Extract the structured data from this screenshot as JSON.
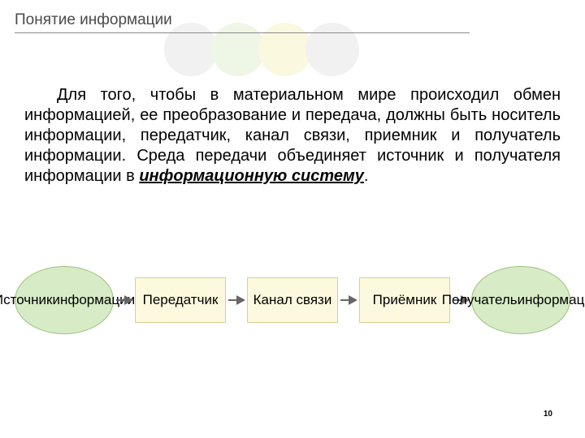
{
  "title": "Понятие информации",
  "decorative_circles": {
    "colors": [
      "#f1f1f1",
      "#eef6e6",
      "#fbf8e0",
      "#f1f1f1"
    ],
    "diameter": 66
  },
  "paragraph": {
    "text_before": "Для того, чтобы в материальном мире происходил обмен информацией, ее преобразование и передача, должны быть носитель информации, передатчик, канал связи, приемник и получатель информации. Среда передачи объединяет источник и получателя информации в ",
    "emphasis": "информационную систему",
    "text_after": "."
  },
  "diagram": {
    "type": "flowchart",
    "arrow_color": "#666666",
    "nodes": [
      {
        "label": "Источник\nинформации",
        "shape": "ellipse",
        "fill": "#d6ebc6",
        "border": "#9cc47a"
      },
      {
        "label": "Передатчик",
        "shape": "rect",
        "fill": "#fdf9df",
        "border": "#d9cf8f"
      },
      {
        "label": "Канал связи",
        "shape": "rect",
        "fill": "#fdf9df",
        "border": "#d9cf8f"
      },
      {
        "label": "Приёмник",
        "shape": "rect",
        "fill": "#fdf9df",
        "border": "#d9cf8f"
      },
      {
        "label": "Получатель\nинформации",
        "shape": "ellipse",
        "fill": "#d6ebc6",
        "border": "#9cc47a"
      }
    ]
  },
  "page_number": "10",
  "styling": {
    "background": "#ffffff",
    "title_color": "#4a4a4a",
    "title_fontsize": 19,
    "body_fontsize": 20,
    "node_fontsize": 17,
    "header_line_color": "#888888"
  }
}
